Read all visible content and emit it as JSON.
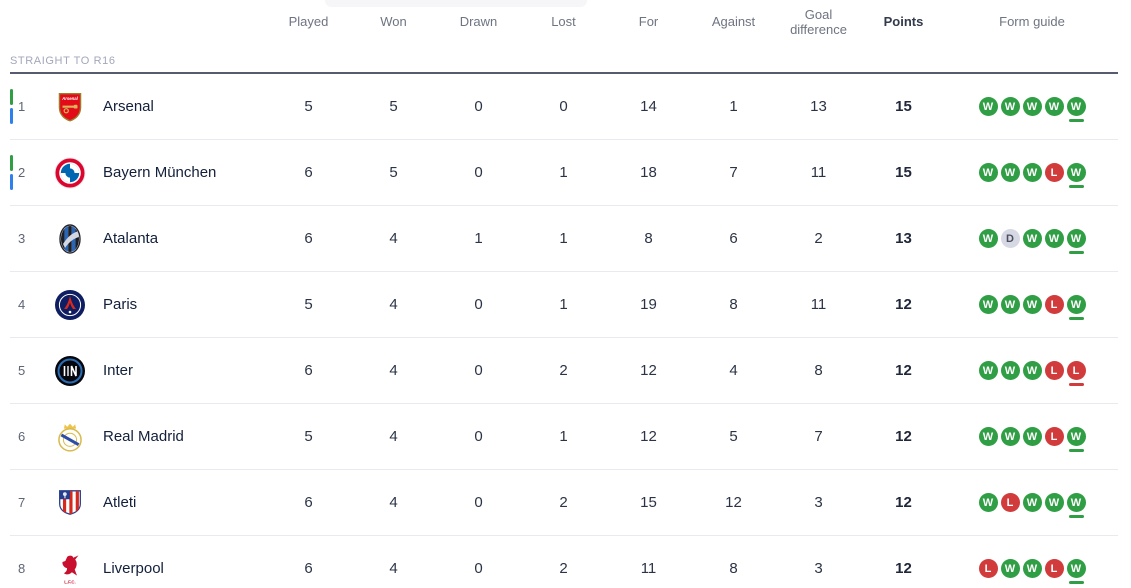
{
  "header": {
    "columns": [
      "Played",
      "Won",
      "Drawn",
      "Lost",
      "For",
      "Against",
      "Goal difference",
      "Points",
      "Form guide"
    ]
  },
  "section": {
    "label": "STRAIGHT TO R16"
  },
  "colors": {
    "win": "#2f9e44",
    "loss": "#d13b3b",
    "draw_bg": "#d6d8e3",
    "draw_text": "#4c4f60",
    "indicator_green": "#2f9e44",
    "indicator_blue": "#2f80ed",
    "section_line": "#565b6f"
  },
  "table": {
    "rows": [
      {
        "rank": "1",
        "team": "Arsenal",
        "logo": "arsenal",
        "indicator": true,
        "played": "5",
        "won": "5",
        "drawn": "0",
        "lost": "0",
        "for": "14",
        "against": "1",
        "gd": "13",
        "points": "15",
        "form": [
          "W",
          "W",
          "W",
          "W",
          "W"
        ]
      },
      {
        "rank": "2",
        "team": "Bayern München",
        "logo": "bayern",
        "indicator": true,
        "played": "6",
        "won": "5",
        "drawn": "0",
        "lost": "1",
        "for": "18",
        "against": "7",
        "gd": "11",
        "points": "15",
        "form": [
          "W",
          "W",
          "W",
          "L",
          "W"
        ]
      },
      {
        "rank": "3",
        "team": "Atalanta",
        "logo": "atalanta",
        "indicator": false,
        "played": "6",
        "won": "4",
        "drawn": "1",
        "lost": "1",
        "for": "8",
        "against": "6",
        "gd": "2",
        "points": "13",
        "form": [
          "W",
          "D",
          "W",
          "W",
          "W"
        ]
      },
      {
        "rank": "4",
        "team": "Paris",
        "logo": "paris",
        "indicator": false,
        "played": "5",
        "won": "4",
        "drawn": "0",
        "lost": "1",
        "for": "19",
        "against": "8",
        "gd": "11",
        "points": "12",
        "form": [
          "W",
          "W",
          "W",
          "L",
          "W"
        ]
      },
      {
        "rank": "5",
        "team": "Inter",
        "logo": "inter",
        "indicator": false,
        "played": "6",
        "won": "4",
        "drawn": "0",
        "lost": "2",
        "for": "12",
        "against": "4",
        "gd": "8",
        "points": "12",
        "form": [
          "W",
          "W",
          "W",
          "L",
          "L"
        ]
      },
      {
        "rank": "6",
        "team": "Real Madrid",
        "logo": "real-madrid",
        "indicator": false,
        "played": "5",
        "won": "4",
        "drawn": "0",
        "lost": "1",
        "for": "12",
        "against": "5",
        "gd": "7",
        "points": "12",
        "form": [
          "W",
          "W",
          "W",
          "L",
          "W"
        ]
      },
      {
        "rank": "7",
        "team": "Atleti",
        "logo": "atleti",
        "indicator": false,
        "played": "6",
        "won": "4",
        "drawn": "0",
        "lost": "2",
        "for": "15",
        "against": "12",
        "gd": "3",
        "points": "12",
        "form": [
          "W",
          "L",
          "W",
          "W",
          "W"
        ]
      },
      {
        "rank": "8",
        "team": "Liverpool",
        "logo": "liverpool",
        "indicator": false,
        "played": "6",
        "won": "4",
        "drawn": "0",
        "lost": "2",
        "for": "11",
        "against": "8",
        "gd": "3",
        "points": "12",
        "form": [
          "L",
          "W",
          "W",
          "L",
          "W"
        ]
      }
    ]
  }
}
